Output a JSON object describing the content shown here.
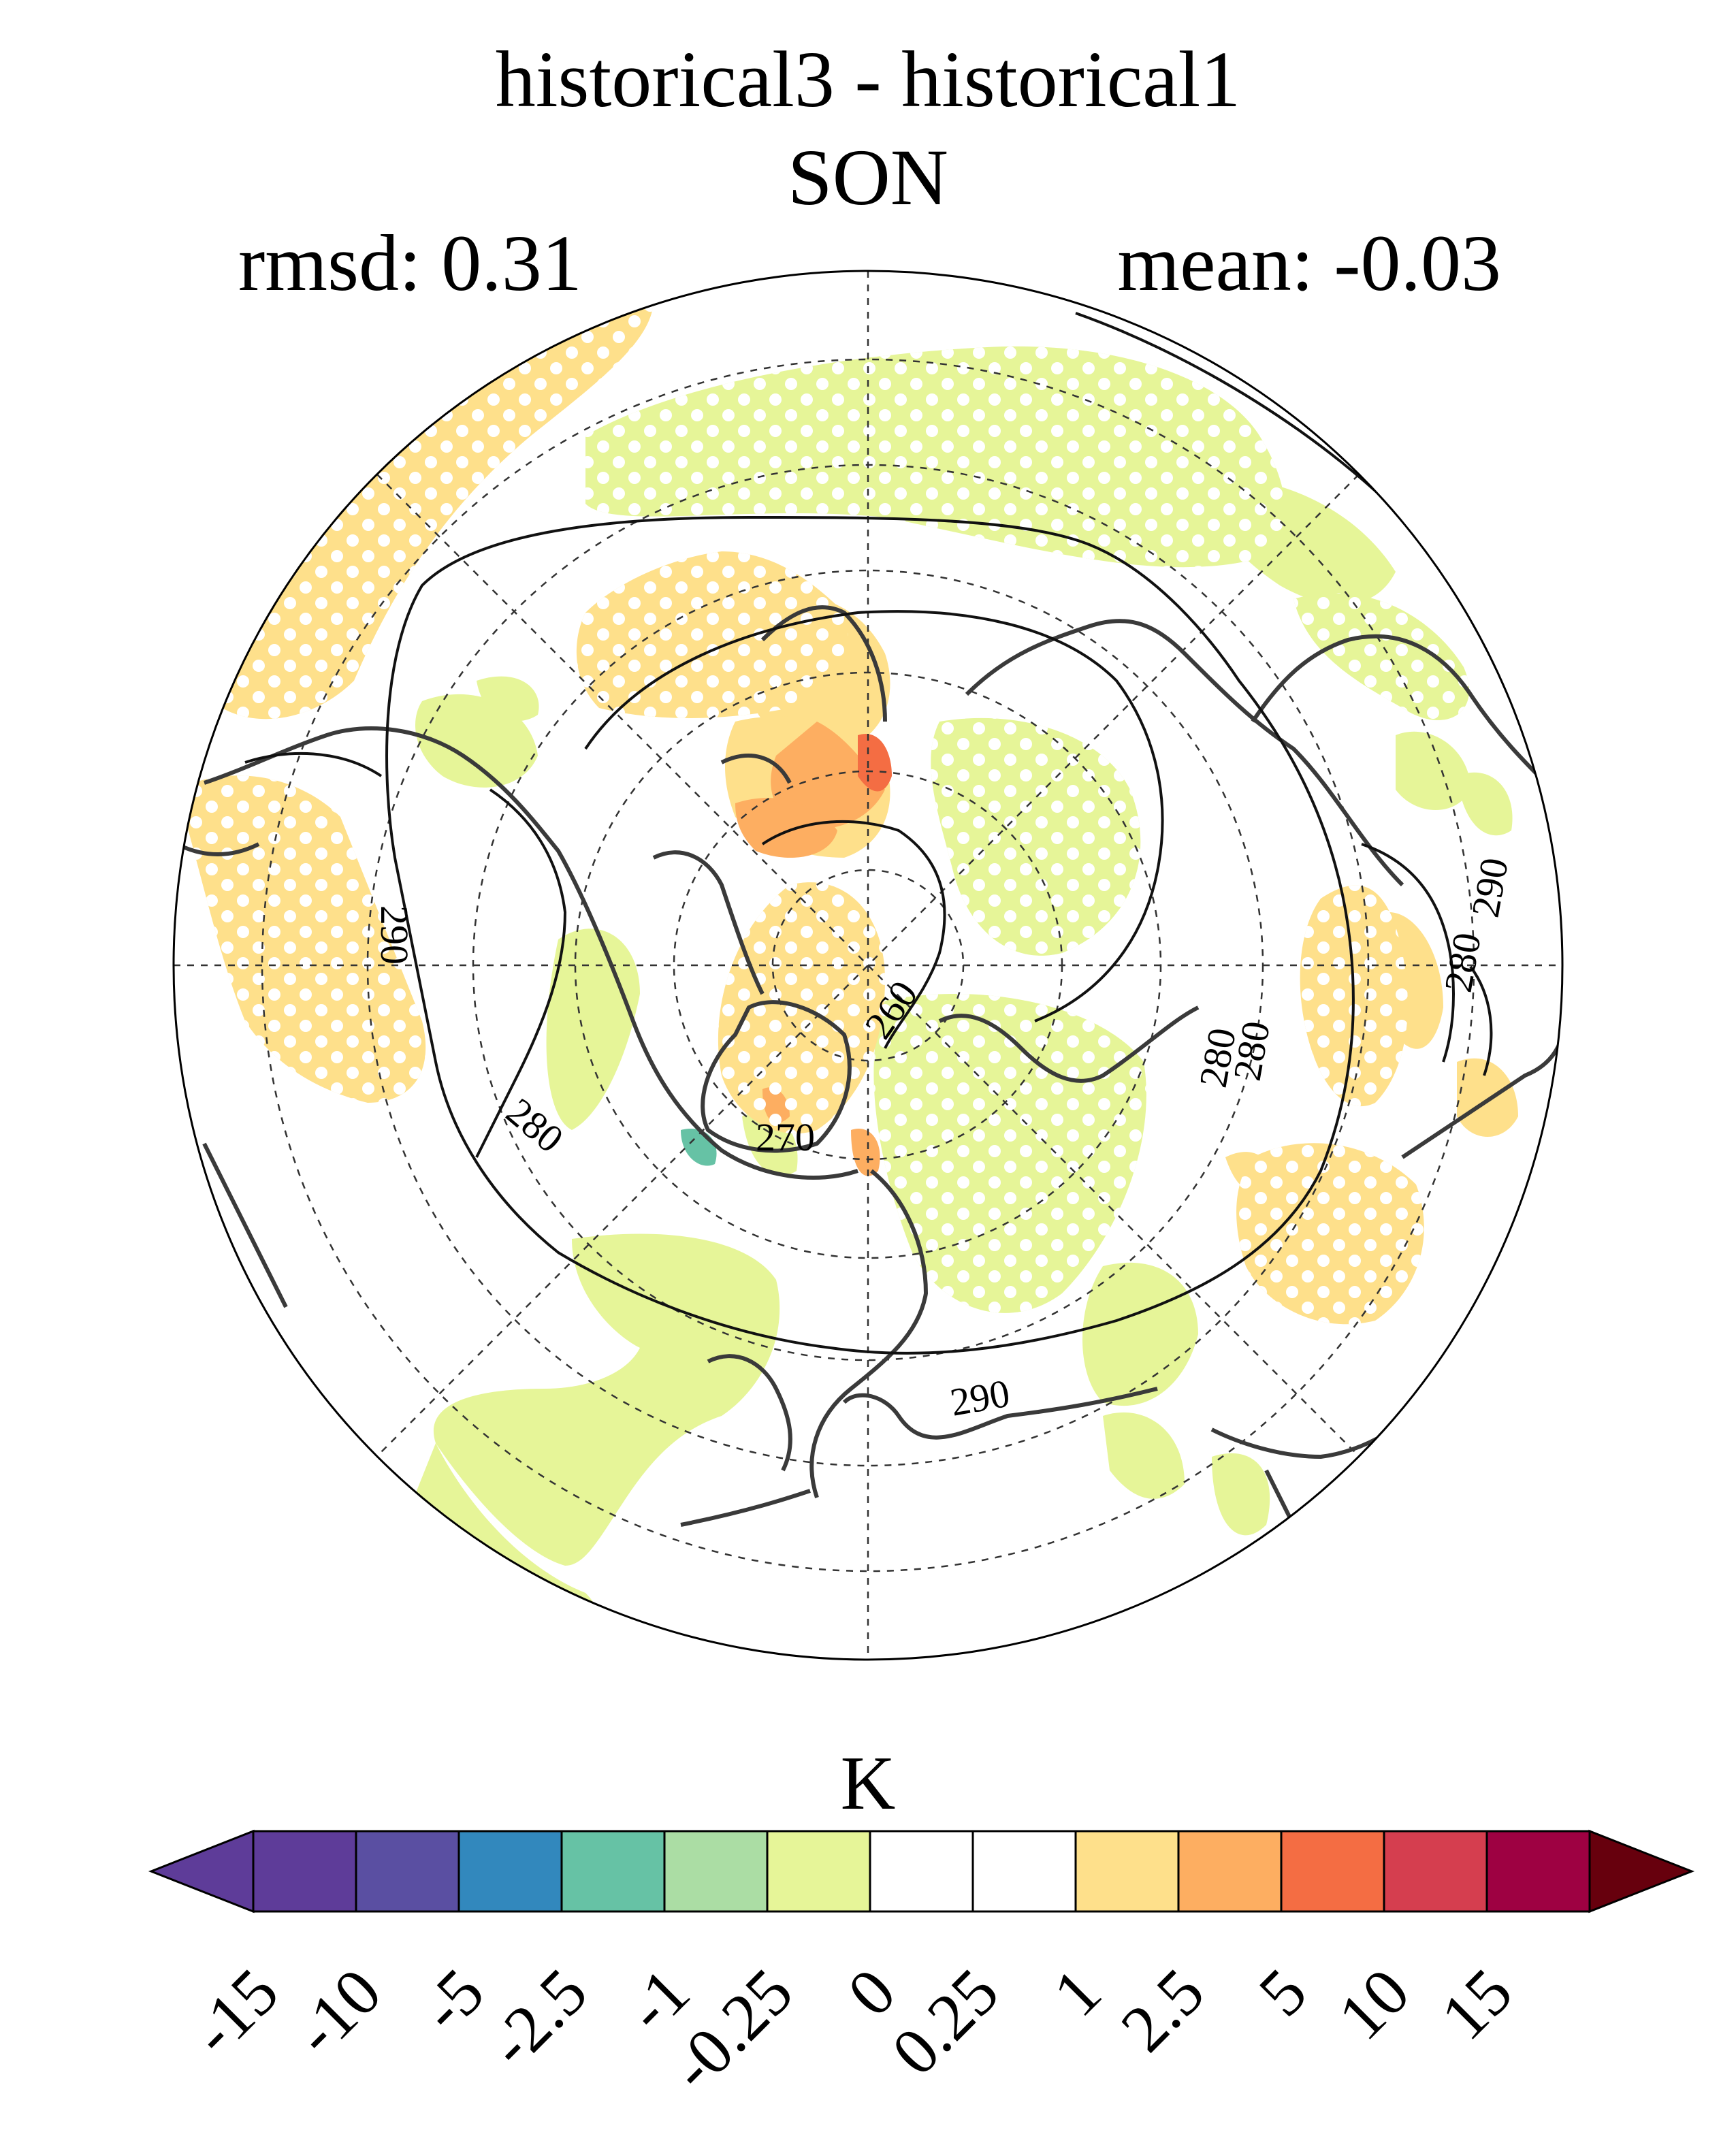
{
  "header": {
    "title": "historical3 - historical1",
    "season": "SON",
    "rmsd": "rmsd: 0.31",
    "mean": "mean: -0.03"
  },
  "map": {
    "projection": "north-polar-stereographic",
    "contour_labels": [
      "290",
      "280",
      "260",
      "270",
      "280",
      "280",
      "290",
      "290",
      "280"
    ],
    "stippling": true
  },
  "colorbar": {
    "unit": "K",
    "ticks": [
      "-15",
      "-10",
      "-5",
      "-2.5",
      "-1",
      "-0.25",
      "0",
      "0.25",
      "1",
      "2.5",
      "5",
      "10",
      "15"
    ],
    "colors": [
      "#5e3c99",
      "#5a4fa2",
      "#3288bd",
      "#66c2a5",
      "#abdda4",
      "#e6f598",
      "#ffffff",
      "#ffffff",
      "#fee08b",
      "#fdae61",
      "#f46d43",
      "#d53e4f",
      "#9e0142"
    ],
    "end_low_color": "#5e3c99",
    "end_high_color": "#67000d"
  },
  "colors": {
    "green_light": "#e6f598",
    "yellow": "#fee08b",
    "orange": "#fdae61",
    "red_orange": "#f46d43",
    "teal": "#66c2a5",
    "coast": "#3a3a3a"
  }
}
